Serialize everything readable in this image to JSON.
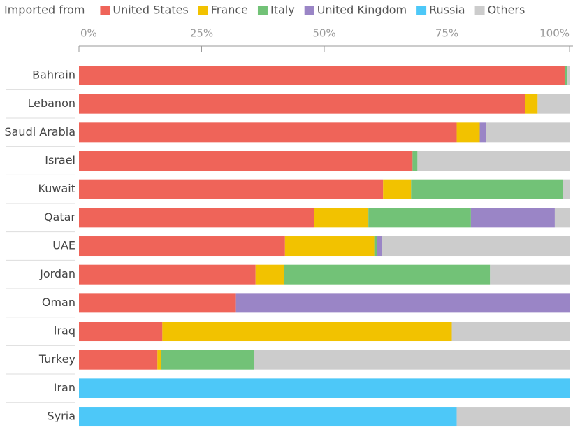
{
  "chart_data": {
    "type": "stacked-bar-horizontal",
    "legend_title": "Imported from",
    "categories": [
      "Bahrain",
      "Lebanon",
      "Saudi Arabia",
      "Israel",
      "Kuwait",
      "Qatar",
      "UAE",
      "Jordan",
      "Oman",
      "Iraq",
      "Turkey",
      "Iran",
      "Syria"
    ],
    "series": [
      {
        "name": "United States",
        "color": "#ef6459",
        "values": [
          99,
          91,
          77,
          68,
          62,
          48,
          42,
          36,
          32,
          17,
          16,
          null,
          null
        ]
      },
      {
        "name": "France",
        "color": "#f2c200",
        "values": [
          null,
          2.5,
          4.7,
          null,
          5.7,
          11,
          18.2,
          5.8,
          null,
          59,
          0.7,
          null,
          null
        ]
      },
      {
        "name": "Italy",
        "color": "#72c277",
        "values": [
          0.6,
          null,
          null,
          1,
          30.9,
          20.9,
          0.6,
          42,
          null,
          null,
          19,
          null,
          null
        ]
      },
      {
        "name": "United Kingdom",
        "color": "#9a85c6",
        "values": [
          null,
          null,
          1.3,
          null,
          null,
          17.1,
          1,
          null,
          68,
          null,
          null,
          null,
          null
        ]
      },
      {
        "name": "Russia",
        "color": "#4dc8f8",
        "values": [
          null,
          null,
          null,
          null,
          null,
          null,
          null,
          null,
          null,
          null,
          null,
          100,
          77
        ]
      },
      {
        "name": "Others",
        "color": "#cccccc",
        "values": [
          0.4,
          6.5,
          17,
          31,
          1.4,
          3,
          38.2,
          16.2,
          null,
          24,
          64.3,
          null,
          23
        ]
      }
    ],
    "xlim": [
      0,
      100
    ],
    "xticks": [
      {
        "value": 0,
        "label": "0%"
      },
      {
        "value": 25,
        "label": "25%"
      },
      {
        "value": 50,
        "label": "50%"
      },
      {
        "value": 75,
        "label": "75%"
      },
      {
        "value": 100,
        "label": "100%"
      }
    ]
  }
}
